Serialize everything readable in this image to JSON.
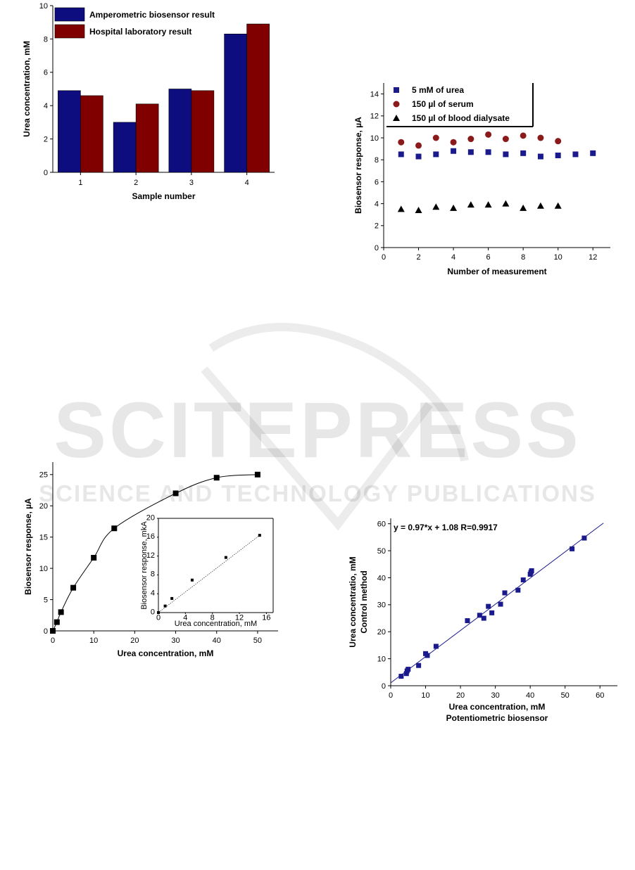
{
  "watermark": {
    "brand": "SCITEPRESS",
    "tagline": "SCIENCE AND TECHNOLOGY PUBLICATIONS"
  },
  "chart_data": [
    {
      "type": "bar",
      "categories": [
        "1",
        "2",
        "3",
        "4"
      ],
      "series": [
        {
          "name": "Amperometric biosensor result",
          "values": [
            4.9,
            3.0,
            5.0,
            8.3
          ],
          "color": "#0d0d80"
        },
        {
          "name": "Hospital laboratory result",
          "values": [
            4.6,
            4.1,
            4.9,
            8.9
          ],
          "color": "#800000"
        }
      ],
      "xlabel": "Sample number",
      "ylabel": "Urea concentration, mM",
      "ylim": [
        0,
        10
      ],
      "yticks": [
        0,
        2,
        4,
        6,
        8,
        10
      ],
      "legend": "top-left",
      "grid": false
    },
    {
      "type": "scatter",
      "series": [
        {
          "name": "5 mM of urea",
          "marker": "square",
          "color": "#1a1a8c",
          "x": [
            1,
            2,
            3,
            4,
            5,
            6,
            7,
            8,
            9,
            10,
            11,
            12
          ],
          "y": [
            8.5,
            8.3,
            8.5,
            8.8,
            8.7,
            8.7,
            8.5,
            8.6,
            8.3,
            8.4,
            8.5,
            8.6
          ]
        },
        {
          "name": "150 µl of serum",
          "marker": "circle",
          "color": "#8b1a1a",
          "x": [
            1,
            2,
            3,
            4,
            5,
            6,
            7,
            8,
            9,
            10
          ],
          "y": [
            9.6,
            9.3,
            10.0,
            9.6,
            9.9,
            10.3,
            9.9,
            10.2,
            10.0,
            9.7
          ]
        },
        {
          "name": "150 µl of blood dialysate",
          "marker": "triangle",
          "color": "#000000",
          "x": [
            1,
            2,
            3,
            4,
            5,
            6,
            7,
            8,
            9,
            10
          ],
          "y": [
            3.5,
            3.4,
            3.7,
            3.6,
            3.9,
            3.9,
            4.0,
            3.6,
            3.8,
            3.8
          ]
        }
      ],
      "xlabel": "Number of measurement",
      "ylabel": "Biosensor response, µA",
      "xlim": [
        0,
        13
      ],
      "ylim": [
        0,
        15
      ],
      "xticks": [
        0,
        2,
        4,
        6,
        8,
        10,
        12
      ],
      "yticks": [
        0,
        2,
        4,
        6,
        8,
        10,
        12,
        14
      ],
      "legend": "top-left",
      "grid": false
    },
    {
      "type": "scatter",
      "series": [
        {
          "marker": "square",
          "color": "#000000",
          "x": [
            0,
            1,
            2,
            5,
            10,
            15,
            30,
            40,
            50
          ],
          "y": [
            0,
            1.4,
            3.0,
            6.9,
            11.7,
            16.4,
            22.0,
            24.5,
            25.0
          ]
        }
      ],
      "fit": "smooth-curve",
      "xlabel": "Urea concentration, mM",
      "ylabel": "Biosensor response, µA",
      "xlim": [
        0,
        55
      ],
      "ylim": [
        0,
        27
      ],
      "xticks": [
        0,
        10,
        20,
        30,
        40,
        50
      ],
      "yticks": [
        0,
        5,
        10,
        15,
        20,
        25
      ],
      "inset": {
        "type": "scatter",
        "x": [
          0,
          1,
          2,
          5,
          10,
          15
        ],
        "y": [
          0,
          1.4,
          3.0,
          6.9,
          11.7,
          16.4
        ],
        "fit": "linear",
        "xlabel": "Urea concentration, mM",
        "ylabel": "Biosensor response, mkA",
        "xlim": [
          0,
          17
        ],
        "ylim": [
          0,
          20
        ],
        "xticks": [
          0,
          4,
          8,
          12,
          16
        ],
        "yticks": [
          0,
          4,
          8,
          12,
          16,
          20
        ]
      }
    },
    {
      "type": "scatter",
      "series": [
        {
          "marker": "square",
          "color": "#1a1a8c",
          "x": [
            3,
            4.5,
            4.7,
            5,
            8,
            10,
            10.5,
            13,
            22,
            25.5,
            26.7,
            28,
            29,
            31.5,
            32.7,
            36.5,
            38,
            40,
            40.2,
            40.4,
            52,
            55.5
          ],
          "y": [
            3.5,
            4.5,
            5.5,
            6.1,
            7.5,
            11.9,
            11.2,
            14.6,
            24.1,
            26.1,
            25.0,
            29.4,
            27.0,
            30.2,
            34.4,
            35.4,
            39.2,
            41.3,
            42.0,
            42.6,
            50.7,
            54.7
          ]
        }
      ],
      "fit": "linear",
      "annotation": "y = 0.97*x + 1.08     R=0.9917",
      "fit_equation": {
        "slope": 0.97,
        "intercept": 1.08
      },
      "xlabel": [
        "Urea concentration, mM",
        "Potentiometric biosensor"
      ],
      "ylabel": [
        "Urea concentratio, mM",
        "Control method"
      ],
      "xlim": [
        0,
        65
      ],
      "ylim": [
        0,
        62
      ],
      "xticks": [
        0,
        10,
        20,
        30,
        40,
        50,
        60
      ],
      "yticks": [
        0,
        10,
        20,
        30,
        40,
        50,
        60
      ],
      "grid": false
    }
  ]
}
